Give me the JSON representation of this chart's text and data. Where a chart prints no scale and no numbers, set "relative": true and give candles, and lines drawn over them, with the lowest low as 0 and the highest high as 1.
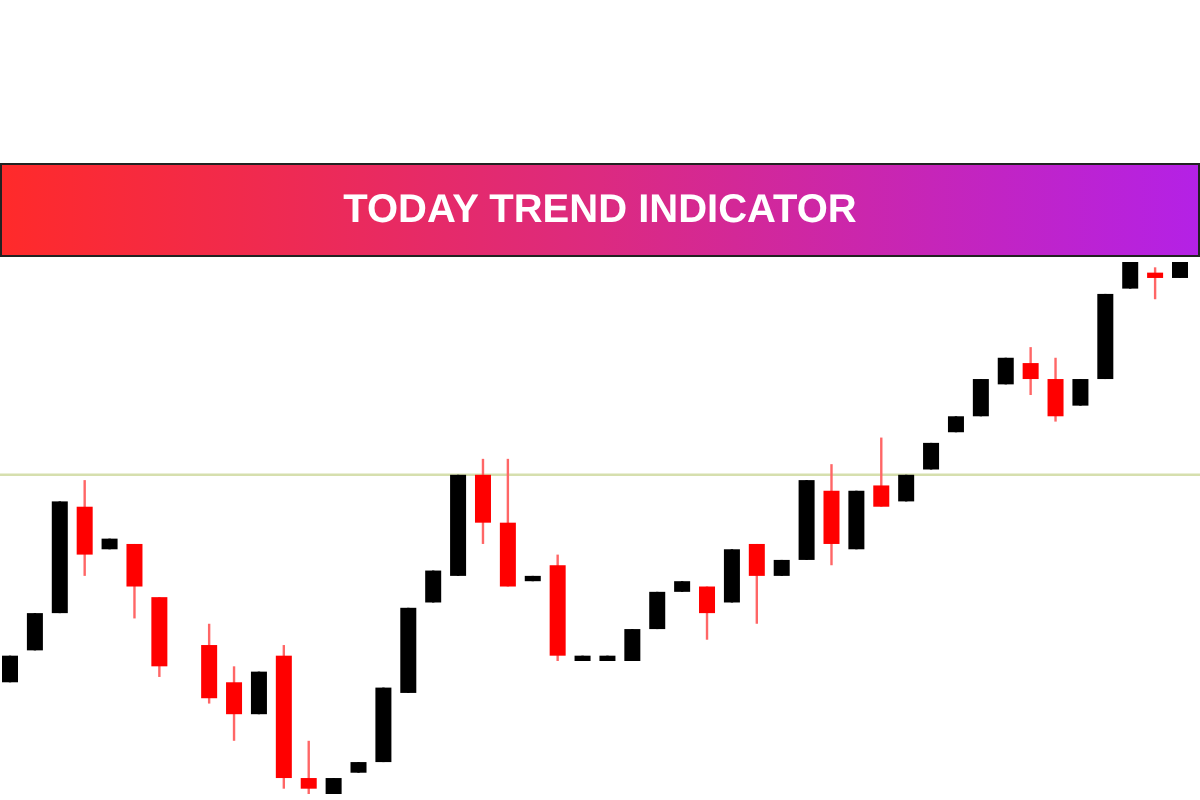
{
  "chart_data": {
    "type": "candlestick",
    "title": "TODAY TREND INDICATOR",
    "relative": true,
    "categories": [
      null,
      null,
      null,
      null,
      null,
      null,
      null,
      null,
      null,
      null,
      null,
      null,
      null,
      null,
      null,
      null,
      null,
      null,
      null,
      null,
      null,
      null,
      null,
      null,
      null,
      null,
      null,
      null,
      null,
      null,
      null,
      null,
      null,
      null,
      null,
      null,
      null,
      null,
      null,
      null,
      null,
      null,
      null,
      null,
      null,
      null,
      null,
      null
    ],
    "ohlc": [
      [
        0.21,
        0.26,
        0.21,
        0.26
      ],
      [
        0.27,
        0.34,
        0.27,
        0.34
      ],
      [
        0.34,
        0.55,
        0.34,
        0.55
      ],
      [
        0.54,
        0.59,
        0.41,
        0.45
      ],
      [
        0.46,
        0.48,
        0.46,
        0.48
      ],
      [
        0.47,
        0.47,
        0.33,
        0.39
      ],
      [
        0.37,
        0.37,
        0.22,
        0.24
      ],
      null,
      [
        0.28,
        0.32,
        0.17,
        0.18
      ],
      [
        0.21,
        0.24,
        0.1,
        0.15
      ],
      [
        0.15,
        0.23,
        0.15,
        0.23
      ],
      [
        0.26,
        0.28,
        0.01,
        0.03
      ],
      [
        0.03,
        0.1,
        0,
        0.01
      ],
      [
        0,
        0.03,
        0,
        0.03
      ],
      [
        0.04,
        0.06,
        0.04,
        0.06
      ],
      [
        0.06,
        0.2,
        0.06,
        0.2
      ],
      [
        0.19,
        0.35,
        0.19,
        0.35
      ],
      [
        0.36,
        0.42,
        0.36,
        0.42
      ],
      [
        0.41,
        0.6,
        0.41,
        0.6
      ],
      [
        0.6,
        0.63,
        0.47,
        0.51
      ],
      [
        0.51,
        0.63,
        0.39,
        0.39
      ],
      [
        0.4,
        0.41,
        0.4,
        0.41
      ],
      [
        0.43,
        0.45,
        0.25,
        0.26
      ],
      [
        0.25,
        0.26,
        0.25,
        0.26
      ],
      [
        0.25,
        0.26,
        0.25,
        0.26
      ],
      [
        0.25,
        0.31,
        0.25,
        0.31
      ],
      [
        0.31,
        0.38,
        0.31,
        0.38
      ],
      [
        0.38,
        0.4,
        0.38,
        0.4
      ],
      [
        0.39,
        0.39,
        0.29,
        0.34
      ],
      [
        0.36,
        0.46,
        0.36,
        0.46
      ],
      [
        0.47,
        0.47,
        0.32,
        0.41
      ],
      [
        0.41,
        0.44,
        0.41,
        0.44
      ],
      [
        0.44,
        0.59,
        0.44,
        0.59
      ],
      [
        0.57,
        0.62,
        0.43,
        0.47
      ],
      [
        0.46,
        0.57,
        0.46,
        0.57
      ],
      [
        0.58,
        0.67,
        0.54,
        0.54
      ],
      [
        0.55,
        0.6,
        0.55,
        0.6
      ],
      [
        0.61,
        0.66,
        0.61,
        0.66
      ],
      [
        0.68,
        0.71,
        0.68,
        0.71
      ],
      [
        0.71,
        0.78,
        0.71,
        0.78
      ],
      [
        0.77,
        0.82,
        0.77,
        0.82
      ],
      [
        0.81,
        0.84,
        0.75,
        0.78
      ],
      [
        0.78,
        0.82,
        0.7,
        0.71
      ],
      [
        0.73,
        0.78,
        0.73,
        0.78
      ],
      [
        0.78,
        0.94,
        0.78,
        0.94
      ],
      [
        0.95,
        1,
        0.95,
        1
      ],
      [
        0.98,
        0.99,
        0.93,
        0.97
      ],
      [
        0.97,
        1,
        0.97,
        1
      ]
    ],
    "ref_lines": [
      {
        "axis": "y",
        "value": 0.6,
        "color": "#d6dfae"
      }
    ]
  }
}
